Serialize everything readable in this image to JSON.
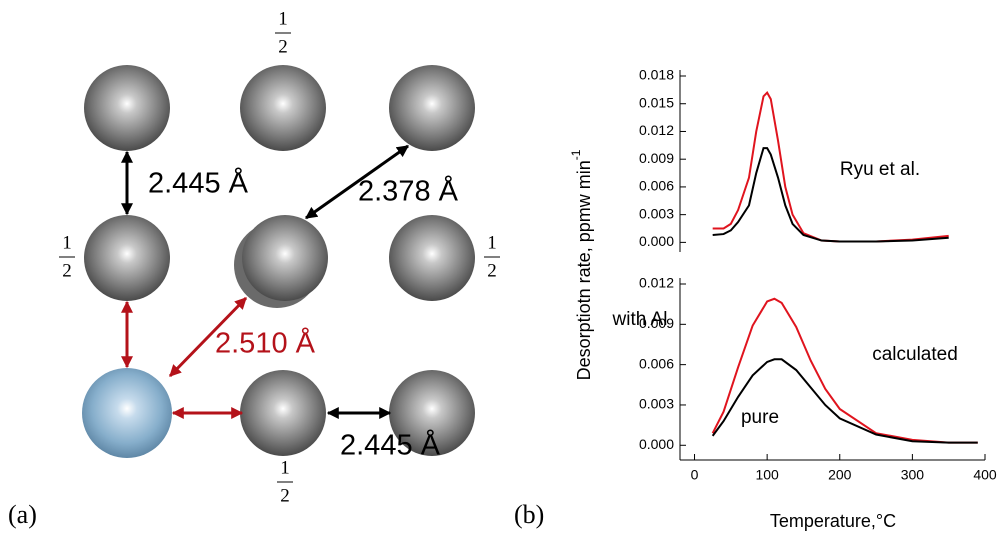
{
  "diagram": {
    "panel_labels": [
      "(a)",
      "(b)"
    ],
    "fractions": [
      {
        "numerator": "1",
        "denominator": "2"
      },
      {
        "numerator": "1",
        "denominator": "2"
      },
      {
        "numerator": "1",
        "denominator": "2"
      },
      {
        "numerator": "1",
        "denominator": "2"
      }
    ],
    "distances": [
      "2.445 Å",
      "2.378 Å",
      "2.510 Å",
      "2.445 Å"
    ]
  },
  "chart_data": [
    {
      "type": "line",
      "ylabel": "Desorptiotn rate, ppmw min",
      "ylabel_superscript": "-1",
      "x": [
        25,
        40,
        50,
        60,
        75,
        85,
        95,
        100,
        105,
        115,
        125,
        135,
        150,
        175,
        200,
        250,
        300,
        350
      ],
      "series": [
        {
          "color": "#e0141e",
          "values": [
            0.0015,
            0.0015,
            0.002,
            0.0035,
            0.007,
            0.012,
            0.0158,
            0.0162,
            0.0155,
            0.011,
            0.006,
            0.003,
            0.001,
            0.0002,
            0.0001,
            0.0001,
            0.0003,
            0.0007
          ]
        },
        {
          "color": "#000000",
          "values": [
            0.0008,
            0.0009,
            0.0013,
            0.0022,
            0.004,
            0.0075,
            0.0102,
            0.0102,
            0.0095,
            0.007,
            0.004,
            0.002,
            0.0008,
            0.0002,
            0.0001,
            0.0001,
            0.0002,
            0.0005
          ]
        }
      ],
      "xlim": [
        -20,
        400
      ],
      "ylim": [
        -0.0005,
        0.018
      ],
      "yticks": [
        {
          "value": 0,
          "label": "0.000"
        },
        {
          "value": 0.003,
          "label": "0.003"
        },
        {
          "value": 0.006,
          "label": "0.006"
        },
        {
          "value": 0.009,
          "label": "0.009"
        },
        {
          "value": 0.012,
          "label": "0.012"
        },
        {
          "value": 0.015,
          "label": "0.015"
        },
        {
          "value": 0.018,
          "label": "0.018"
        }
      ],
      "annotations": [
        "Ryu et al."
      ],
      "grid": false
    },
    {
      "type": "line",
      "xlabel": "Temperature,°C",
      "x": [
        25,
        40,
        60,
        80,
        100,
        110,
        120,
        140,
        160,
        180,
        200,
        250,
        300,
        350,
        390
      ],
      "series": [
        {
          "color": "#e0141e",
          "values": [
            0.0009,
            0.0025,
            0.0058,
            0.0089,
            0.0107,
            0.0109,
            0.0106,
            0.0088,
            0.0063,
            0.0042,
            0.0027,
            0.0009,
            0.0004,
            0.0002,
            0.0002
          ]
        },
        {
          "color": "#000000",
          "values": [
            0.0007,
            0.0018,
            0.0036,
            0.0052,
            0.0062,
            0.0064,
            0.0064,
            0.0056,
            0.0043,
            0.003,
            0.002,
            0.0008,
            0.0003,
            0.0002,
            0.0002
          ]
        }
      ],
      "xlim": [
        -20,
        400
      ],
      "ylim": [
        -0.0005,
        0.012
      ],
      "xticks": [
        0,
        100,
        200,
        300,
        400
      ],
      "yticks": [
        {
          "value": 0,
          "label": "0.000"
        },
        {
          "value": 0.003,
          "label": "0.003"
        },
        {
          "value": 0.006,
          "label": "0.006"
        },
        {
          "value": 0.009,
          "label": "0.009"
        },
        {
          "value": 0.012,
          "label": "0.012"
        }
      ],
      "annotations": [
        "with Al",
        "calculated",
        "pure"
      ],
      "grid": false
    }
  ]
}
